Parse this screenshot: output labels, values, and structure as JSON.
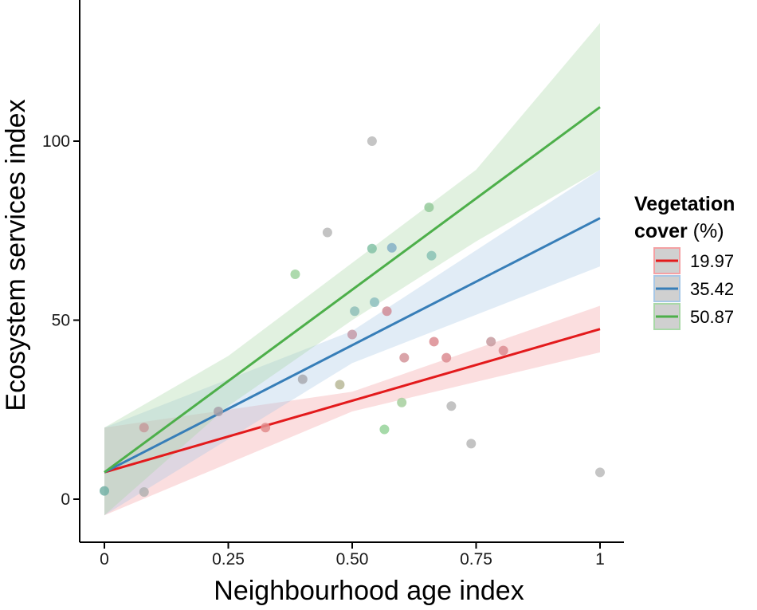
{
  "chart_data": {
    "type": "scatter",
    "xlabel": "Neighbourhood age index",
    "ylabel": "Ecosystem services index",
    "xlim": [
      -0.05,
      1.05
    ],
    "ylim": [
      -11.3,
      139
    ],
    "x_ticks": [
      0,
      0.25,
      0.5,
      0.75,
      1
    ],
    "x_tick_labels": [
      "0",
      "0.25",
      "0.50",
      "0.75",
      "1"
    ],
    "y_ticks": [
      0,
      50,
      100
    ],
    "y_tick_labels": [
      "0",
      "50",
      "100"
    ],
    "grid": false,
    "legend": {
      "title_bold": "Vegetation",
      "title_bold_2": "cover",
      "title_rest": " (%)",
      "position": "right",
      "entries": [
        "19.97",
        "35.42",
        "50.87"
      ]
    },
    "series": [
      {
        "name": "19.97",
        "color": "#e31a1c",
        "band_color": "#f4a0a3",
        "line": [
          [
            0,
            7.5
          ],
          [
            1,
            47.5
          ]
        ],
        "ci_x": [
          0,
          0.5,
          1
        ],
        "ci_lower": [
          -4.5,
          24.5,
          41
        ],
        "ci_upper": [
          20,
          30,
          54
        ]
      },
      {
        "name": "35.42",
        "color": "#377eb8",
        "band_color": "#a8c8e6",
        "line": [
          [
            0,
            7.5
          ],
          [
            1,
            78.5
          ]
        ],
        "ci_x": [
          0,
          0.5,
          1
        ],
        "ci_lower": [
          -4.5,
          38,
          65
        ],
        "ci_upper": [
          20,
          47,
          92
        ]
      },
      {
        "name": "50.87",
        "color": "#4daf4a",
        "band_color": "#a9d8a7",
        "line": [
          [
            0,
            7.5
          ],
          [
            1,
            109.5
          ]
        ],
        "ci_x": [
          0,
          0.25,
          0.5,
          0.75,
          1
        ],
        "ci_lower": [
          -4.5,
          26,
          50,
          72,
          92
        ],
        "ci_upper": [
          20,
          40,
          66,
          92,
          133
        ]
      }
    ],
    "points": [
      {
        "x": 0.0,
        "y": 2.3,
        "color": "#74b2a6"
      },
      {
        "x": 0.08,
        "y": 20,
        "color": "#c69b9b"
      },
      {
        "x": 0.08,
        "y": 2,
        "color": "#b2b2b2"
      },
      {
        "x": 0.23,
        "y": 24.5,
        "color": "#a8a0a8"
      },
      {
        "x": 0.325,
        "y": 20,
        "color": "#e28c8c"
      },
      {
        "x": 0.385,
        "y": 62.8,
        "color": "#9fd49f"
      },
      {
        "x": 0.4,
        "y": 33.5,
        "color": "#a8aab0"
      },
      {
        "x": 0.45,
        "y": 74.5,
        "color": "#b8b8b8"
      },
      {
        "x": 0.475,
        "y": 32,
        "color": "#b8b898"
      },
      {
        "x": 0.5,
        "y": 46,
        "color": "#c49aa8"
      },
      {
        "x": 0.505,
        "y": 52.5,
        "color": "#8fc0b8"
      },
      {
        "x": 0.54,
        "y": 100,
        "color": "#bbbbbb"
      },
      {
        "x": 0.54,
        "y": 70,
        "color": "#84c2a6"
      },
      {
        "x": 0.545,
        "y": 55,
        "color": "#8ec0c0"
      },
      {
        "x": 0.565,
        "y": 19.5,
        "color": "#96d39a"
      },
      {
        "x": 0.57,
        "y": 52.5,
        "color": "#d08c96"
      },
      {
        "x": 0.58,
        "y": 70.2,
        "color": "#84b0c6"
      },
      {
        "x": 0.6,
        "y": 27,
        "color": "#a6cf9e"
      },
      {
        "x": 0.605,
        "y": 39.5,
        "color": "#d4949a"
      },
      {
        "x": 0.655,
        "y": 81.5,
        "color": "#95ca9b"
      },
      {
        "x": 0.66,
        "y": 68,
        "color": "#88c2b4"
      },
      {
        "x": 0.665,
        "y": 44,
        "color": "#dc8c92"
      },
      {
        "x": 0.69,
        "y": 39.5,
        "color": "#dc8c92"
      },
      {
        "x": 0.7,
        "y": 26,
        "color": "#b9b9b9"
      },
      {
        "x": 0.74,
        "y": 15.5,
        "color": "#b9b9b9"
      },
      {
        "x": 0.78,
        "y": 44,
        "color": "#c79ba0"
      },
      {
        "x": 0.805,
        "y": 41.5,
        "color": "#dc8c92"
      },
      {
        "x": 1.0,
        "y": 7.5,
        "color": "#bbbbbb"
      }
    ]
  }
}
